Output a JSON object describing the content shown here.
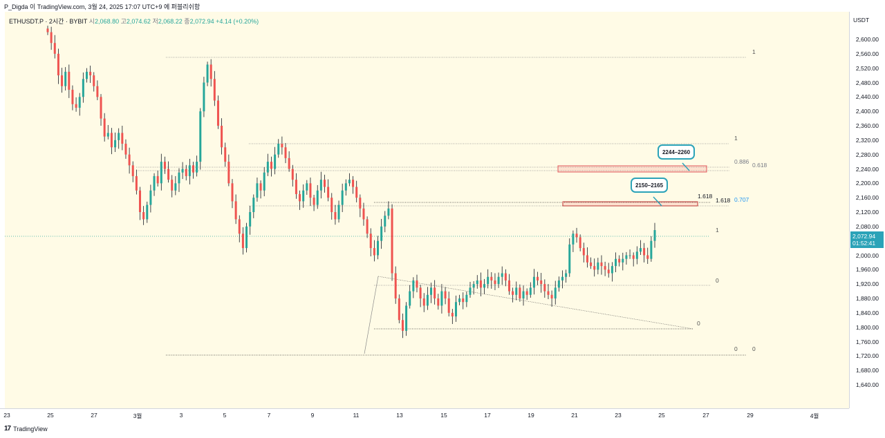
{
  "header": {
    "publish_line": "P_Digda 이 TradingView.com, 3월 24, 2025 17:07 UTC+9 에 퍼블리쉬함"
  },
  "symbol": {
    "name": "ETHUSDT.P · 2시간 · BYBIT",
    "open_label": "시",
    "open": "2,068.80",
    "high_label": "고",
    "high": "2,074.62",
    "low_label": "저",
    "low": "2,068.22",
    "close_label": "종",
    "close": "2,072.94",
    "change": "+4.14 (+0.20%)"
  },
  "price_axis": {
    "currency": "USDT",
    "ticks": [
      "2,600.00",
      "2,560.00",
      "2,520.00",
      "2,480.00",
      "2,440.00",
      "2,400.00",
      "2,360.00",
      "2,320.00",
      "2,280.00",
      "2,240.00",
      "2,200.00",
      "2,160.00",
      "2,120.00",
      "2,080.00",
      "2,040.00",
      "2,000.00",
      "1,960.00",
      "1,920.00",
      "1,880.00",
      "1,840.00",
      "1,800.00",
      "1,760.00",
      "1,720.00",
      "1,680.00",
      "1,640.00"
    ],
    "last_price": "2,072.94",
    "countdown": "01:52:41"
  },
  "time_axis": {
    "ticks": [
      "23",
      "25",
      "27",
      "3월",
      "3",
      "5",
      "7",
      "9",
      "11",
      "13",
      "15",
      "17",
      "19",
      "21",
      "23",
      "25",
      "27",
      "29",
      "4월"
    ]
  },
  "fib_labels": {
    "a1": "1",
    "b1": "1",
    "b0886": "0.886",
    "b0618": "0.618",
    "c1618": "1.618",
    "d1618": "1.618",
    "d0707": "0.707",
    "e1": "1",
    "e0": "0",
    "f0": "0",
    "g0": "0",
    "h0": "0"
  },
  "callouts": {
    "upper": "2244–2260",
    "lower": "2150–2165"
  },
  "footer": {
    "brand": "TradingView",
    "logo": "17"
  },
  "colors": {
    "up": "#26a69a",
    "down": "#ef5350",
    "background": "#fffbe6",
    "accent": "#2ba3b8"
  },
  "chart_data": {
    "type": "candlestick",
    "symbol": "ETHUSDT.P",
    "ylim": [
      1620,
      2620
    ],
    "last_price": 2072.94,
    "x_ticks": [
      "23",
      "25",
      "27",
      "3월",
      "3",
      "5",
      "7",
      "9",
      "11",
      "13",
      "15",
      "17",
      "19",
      "21",
      "23",
      "25",
      "27",
      "29",
      "4월"
    ],
    "zones": [
      {
        "label": "2244–2260",
        "from": 2244,
        "to": 2260
      },
      {
        "label": "2150–2165",
        "from": 2150,
        "to": 2165
      }
    ],
    "closes": [
      2620,
      2590,
      2560,
      2500,
      2470,
      2510,
      2460,
      2420,
      2410,
      2440,
      2490,
      2510,
      2500,
      2470,
      2440,
      2380,
      2330,
      2340,
      2300,
      2320,
      2340,
      2310,
      2280,
      2250,
      2220,
      2180,
      2120,
      2100,
      2140,
      2180,
      2220,
      2200,
      2260,
      2240,
      2210,
      2180,
      2200,
      2230,
      2240,
      2220,
      2250,
      2230,
      2260,
      2400,
      2480,
      2530,
      2490,
      2430,
      2360,
      2300,
      2260,
      2200,
      2150,
      2100,
      2060,
      2020,
      2080,
      2120,
      2160,
      2200,
      2180,
      2230,
      2260,
      2240,
      2280,
      2310,
      2300,
      2270,
      2240,
      2210,
      2170,
      2150,
      2180,
      2200,
      2160,
      2140,
      2180,
      2210,
      2190,
      2160,
      2120,
      2100,
      2140,
      2180,
      2200,
      2210,
      2190,
      2160,
      2130,
      2100,
      2060,
      2020,
      2000,
      2040,
      2080,
      2110,
      2130,
      1950,
      1880,
      1820,
      1790,
      1860,
      1900,
      1930,
      1910,
      1880,
      1860,
      1890,
      1910,
      1880,
      1860,
      1900,
      1880,
      1840,
      1830,
      1870,
      1880,
      1870,
      1890,
      1910,
      1920,
      1930,
      1910,
      1920,
      1940,
      1930,
      1920,
      1940,
      1950,
      1930,
      1900,
      1890,
      1910,
      1880,
      1900,
      1890,
      1910,
      1940,
      1930,
      1920,
      1900,
      1890,
      1880,
      1910,
      1930,
      1940,
      1950,
      2030,
      2060,
      2050,
      2020,
      2000,
      1980,
      1970,
      1960,
      1980,
      1970,
      1960,
      1950,
      1970,
      1990,
      1980,
      1990,
      2000,
      2000,
      1990,
      2010,
      2020,
      2000,
      1990,
      2040,
      2070
    ]
  }
}
